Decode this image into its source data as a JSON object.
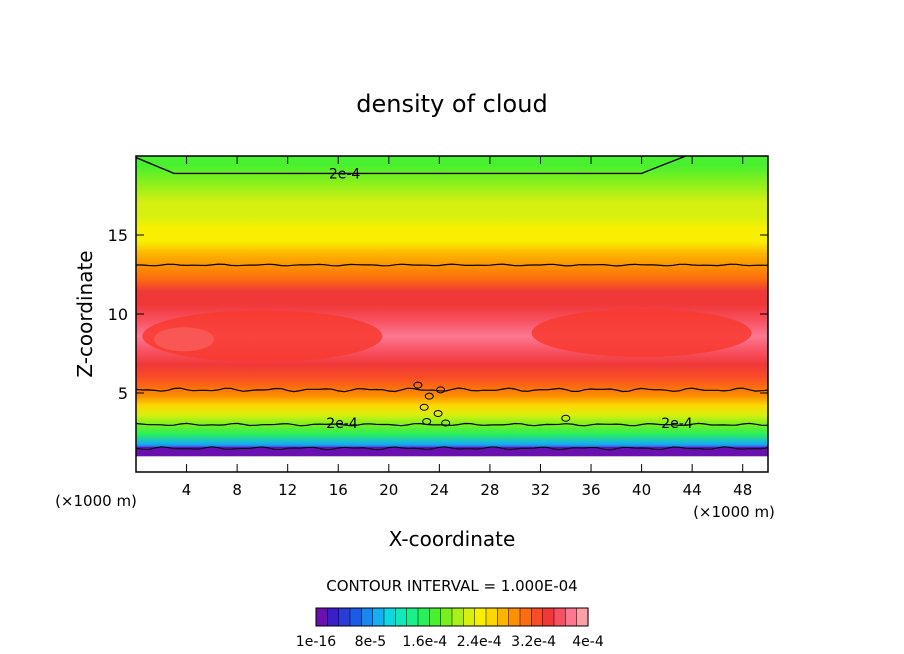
{
  "chart_data": {
    "type": "heatmap",
    "title": "density of cloud",
    "xlabel": "X-coordinate",
    "ylabel": "Z-coordinate",
    "x_unit": "(×1000 m)",
    "xlim": [
      0,
      50
    ],
    "ylim": [
      0,
      20
    ],
    "x_ticks": [
      4,
      8,
      12,
      16,
      20,
      24,
      28,
      32,
      36,
      40,
      44,
      48
    ],
    "y_ticks": [
      5,
      10,
      15
    ],
    "contour_interval_text": "CONTOUR INTERVAL = 1.000E-04",
    "contour_labels": [
      {
        "text": "2e-4",
        "x": 16.5,
        "z": 18.9
      },
      {
        "text": "2e-4",
        "x": 16.3,
        "z": 3.1
      },
      {
        "text": "2e-4",
        "x": 42.8,
        "z": 3.1
      }
    ],
    "colorbar_labels": [
      "1e-16",
      "8e-5",
      "1.6e-4",
      "2.4e-4",
      "3.2e-4",
      "4e-4"
    ],
    "colorbar_colors": [
      "#6a0fb0",
      "#3a1ec8",
      "#2a3cd8",
      "#1a5ce8",
      "#1a86f0",
      "#16b0f0",
      "#10d8e0",
      "#12e8b8",
      "#18f088",
      "#28f058",
      "#48f030",
      "#78f020",
      "#a8f018",
      "#d8f010",
      "#f8f000",
      "#fcd800",
      "#fcb400",
      "#fc9000",
      "#fc6c10",
      "#f84c28",
      "#f03838",
      "#f85060",
      "#fc7890",
      "#fca0a8"
    ],
    "profile": {
      "comment_free": true,
      "z": [
        0.6,
        1.0,
        1.4,
        1.8,
        2.4,
        3.0,
        3.6,
        4.2,
        4.8,
        5.4,
        6.0,
        6.8,
        7.6,
        8.6,
        9.6,
        10.6,
        11.4,
        12.2,
        13.0,
        13.8,
        14.6,
        15.4,
        16.2,
        17.0,
        17.8,
        18.6,
        19.4,
        20.0
      ],
      "value": [
        0.0,
        2e-05,
        6e-05,
        0.0001,
        0.00016,
        0.0002,
        0.00024,
        0.00027,
        0.0003,
        0.00032,
        0.00034,
        0.00036,
        0.00038,
        0.000385,
        0.00038,
        0.000365,
        0.00035,
        0.00033,
        0.0003,
        0.00028,
        0.00026,
        0.00025,
        0.00024,
        0.00023,
        0.00022,
        0.0002,
        0.00019,
        0.00018
      ]
    }
  }
}
